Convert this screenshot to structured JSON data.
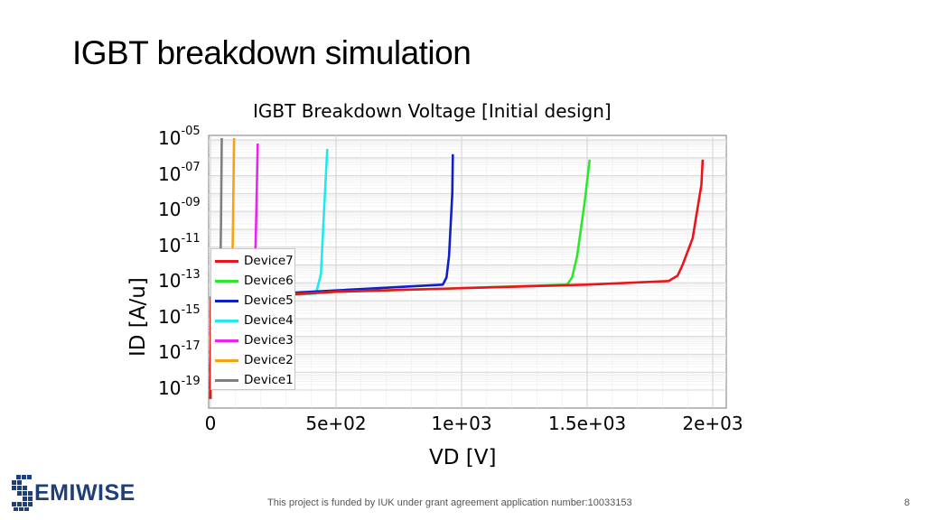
{
  "slide": {
    "title": "IGBT breakdown simulation",
    "footer": "This project is funded by IUK under grant agreement application number:10033153",
    "page_number": "8",
    "logo_text": "EMIWISE",
    "logo_initial": "S"
  },
  "chart_data": {
    "type": "line",
    "title": "IGBT Breakdown Voltage [Initial design]",
    "xlabel": "VD [V]",
    "ylabel": "ID [A/u]",
    "xlim": [
      0,
      2000
    ],
    "ylim_log10": [
      -19.5,
      -5
    ],
    "y_scale": "log",
    "grid": true,
    "legend_placement": "bottom-left",
    "x_ticks": [
      {
        "value": 0,
        "label": "0"
      },
      {
        "value": 500,
        "label": "5e+02"
      },
      {
        "value": 1000,
        "label": "1e+03"
      },
      {
        "value": 1500,
        "label": "1.5e+03"
      },
      {
        "value": 2000,
        "label": "2e+03"
      }
    ],
    "y_ticks": [
      {
        "value": -5,
        "base": "10",
        "exp": "-05"
      },
      {
        "value": -7,
        "base": "10",
        "exp": "-07"
      },
      {
        "value": -9,
        "base": "10",
        "exp": "-09"
      },
      {
        "value": -11,
        "base": "10",
        "exp": "-11"
      },
      {
        "value": -13,
        "base": "10",
        "exp": "-13"
      },
      {
        "value": -15,
        "base": "10",
        "exp": "-15"
      },
      {
        "value": -17,
        "base": "10",
        "exp": "-17"
      },
      {
        "value": -19,
        "base": "10",
        "exp": "-19"
      }
    ],
    "series": [
      {
        "name": "Device7",
        "color": "#e8161b",
        "x": [
          0,
          2,
          500,
          1000,
          1500,
          1825,
          1860,
          1880,
          1920,
          1955,
          1960
        ],
        "y": [
          -19.5,
          -13.9,
          -13.5,
          -13.3,
          -13.1,
          -12.9,
          -12.6,
          -12.0,
          -10.5,
          -7.5,
          -6.1
        ]
      },
      {
        "name": "Device6",
        "color": "#2ce62c",
        "x": [
          0,
          2,
          500,
          1000,
          1420,
          1440,
          1460,
          1490,
          1510
        ],
        "y": [
          -19.5,
          -13.9,
          -13.5,
          -13.3,
          -13.1,
          -12.7,
          -11.5,
          -8.5,
          -6.1
        ]
      },
      {
        "name": "Device5",
        "color": "#1020c8",
        "x": [
          0,
          2,
          400,
          800,
          925,
          940,
          950,
          963,
          965
        ],
        "y": [
          -19.5,
          -13.8,
          -13.5,
          -13.2,
          -13.1,
          -12.7,
          -11.5,
          -8.0,
          -5.8
        ]
      },
      {
        "name": "Device4",
        "color": "#22e8e8",
        "x": [
          0,
          2,
          420,
          440,
          452,
          465
        ],
        "y": [
          -19.5,
          -13.9,
          -13.6,
          -12.5,
          -9.0,
          -5.5
        ]
      },
      {
        "name": "Device3",
        "color": "#ee22ee",
        "x": [
          0,
          2,
          175,
          182,
          188
        ],
        "y": [
          -19.5,
          -14.0,
          -13.8,
          -9.5,
          -5.2
        ]
      },
      {
        "name": "Device2",
        "color": "#f5a314",
        "x": [
          0,
          2,
          85,
          90,
          94
        ],
        "y": [
          -19.5,
          -14.0,
          -13.9,
          -9.5,
          -4.9
        ]
      },
      {
        "name": "Device1",
        "color": "#7f7f7f",
        "x": [
          0,
          2,
          38,
          42,
          45
        ],
        "y": [
          -19.5,
          -14.0,
          -13.9,
          -9.5,
          -4.9
        ]
      }
    ]
  }
}
